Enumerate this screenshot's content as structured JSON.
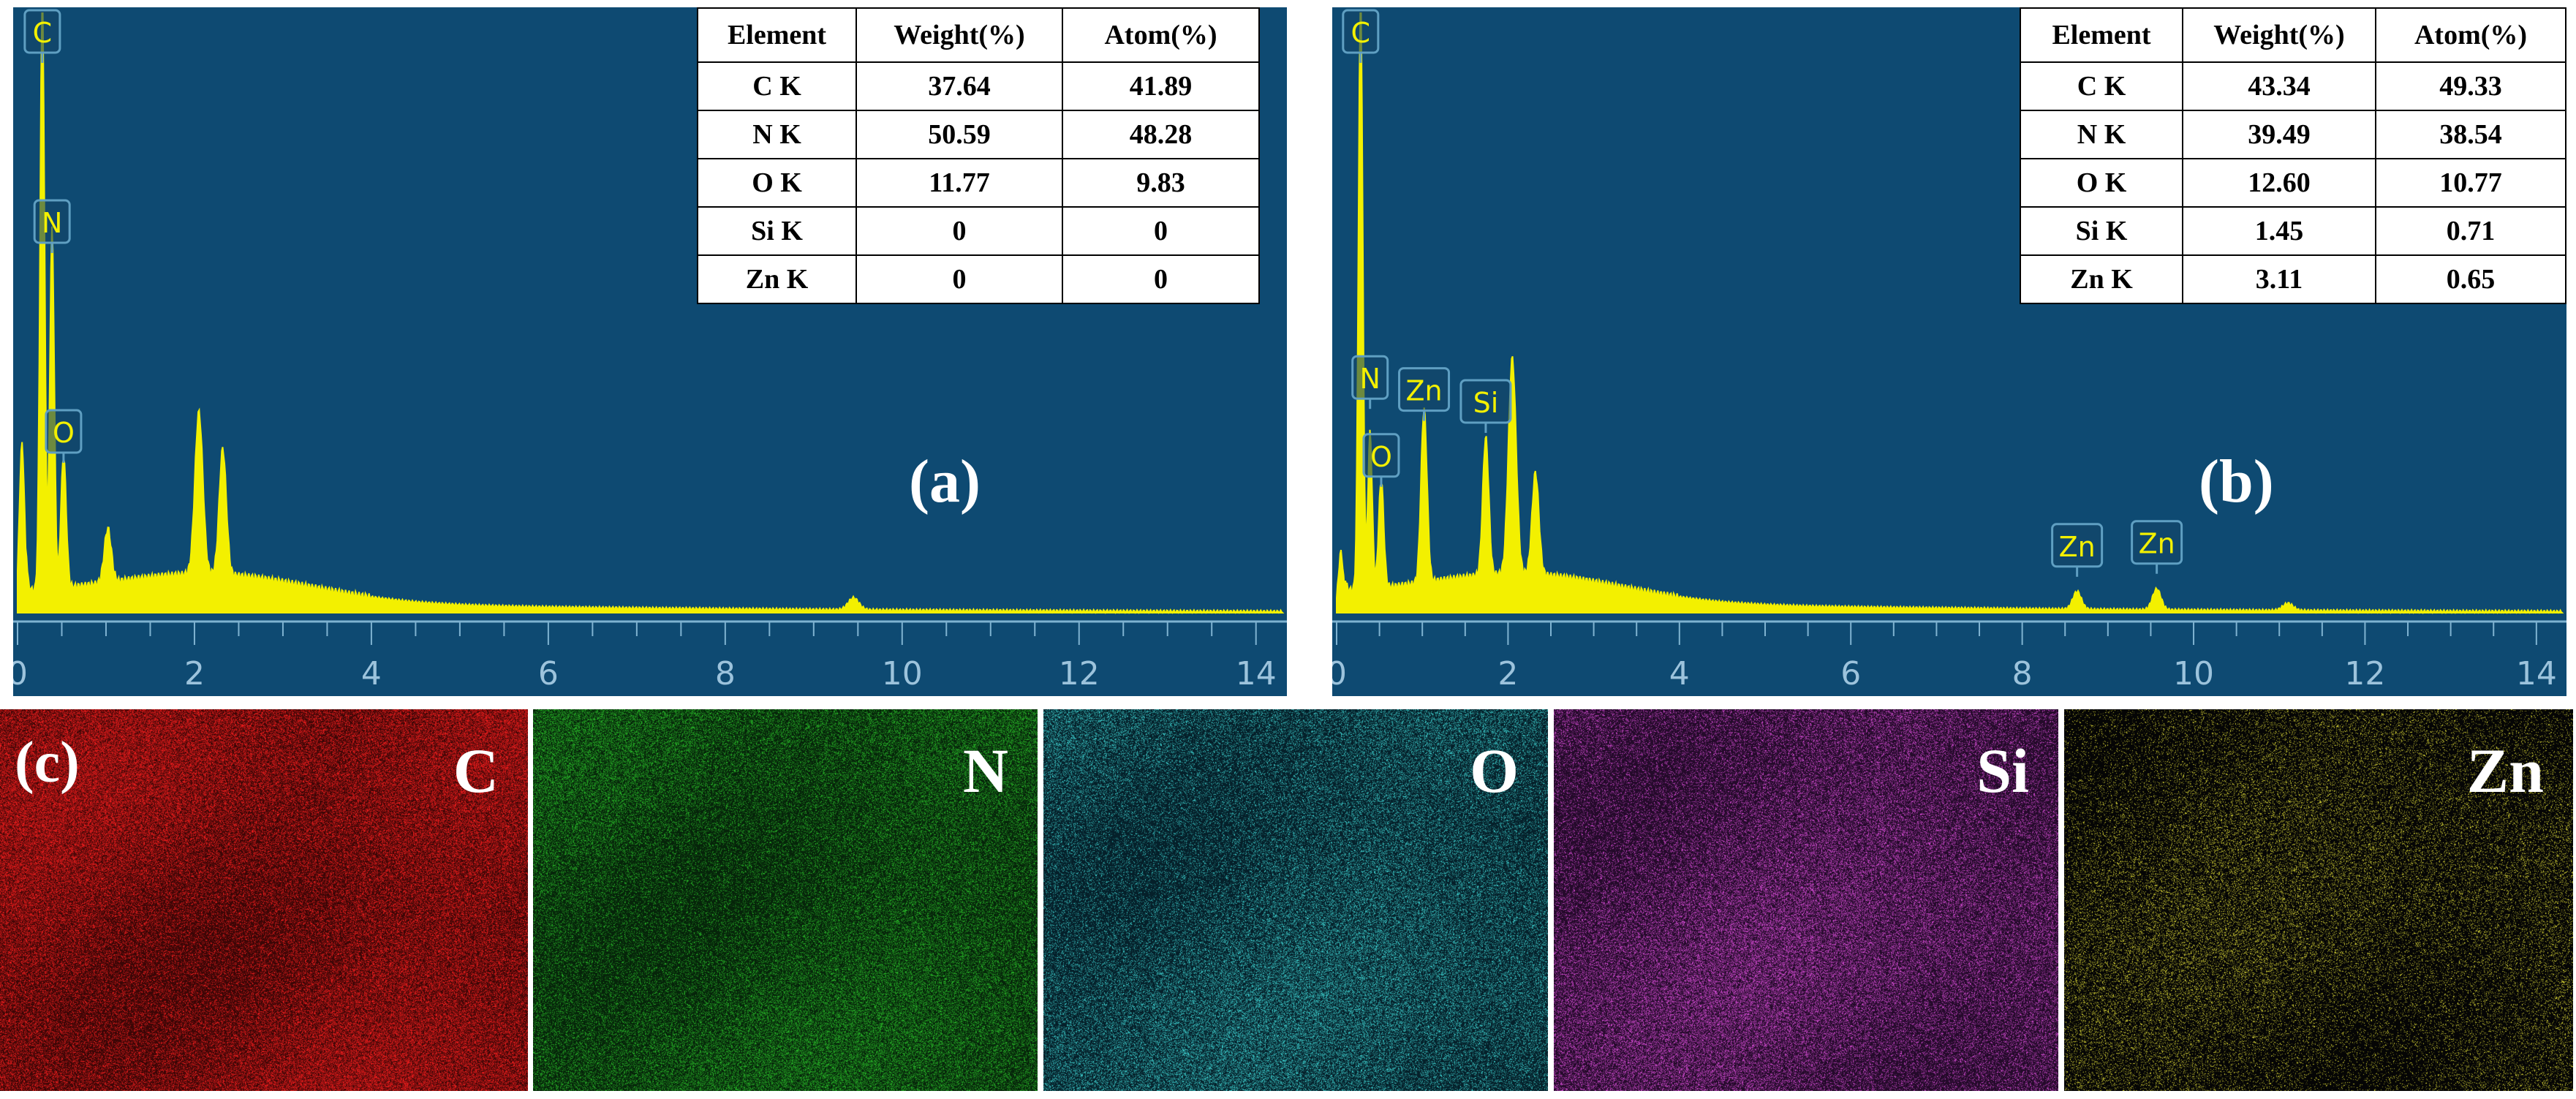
{
  "chart_data": [
    {
      "type": "line",
      "panel_label": "(a)",
      "x_ticks": [
        "0",
        "2",
        "4",
        "6",
        "8",
        "10",
        "12",
        "14"
      ],
      "xlim": [
        0,
        14.3
      ],
      "ylim": [
        0,
        1
      ],
      "peaks": [
        {
          "x": 0.05,
          "y": 0.28,
          "w": 0.03
        },
        {
          "x": 0.28,
          "y": 1.0,
          "w": 0.025
        },
        {
          "x": 0.39,
          "y": 0.6,
          "w": 0.025
        },
        {
          "x": 0.52,
          "y": 0.22,
          "w": 0.03
        },
        {
          "x": 1.02,
          "y": 0.09,
          "w": 0.04
        },
        {
          "x": 2.05,
          "y": 0.27,
          "w": 0.045
        },
        {
          "x": 2.32,
          "y": 0.21,
          "w": 0.04
        },
        {
          "x": 9.45,
          "y": 0.02,
          "w": 0.06
        }
      ],
      "peak_labels": [
        {
          "text": "C",
          "x": 0.28,
          "y": 1.0
        },
        {
          "text": "N",
          "x": 0.39,
          "y": 0.6
        },
        {
          "text": "O",
          "x": 0.52,
          "y": 0.25
        }
      ],
      "table": {
        "headers": [
          "Element",
          "Weight(%)",
          "Atom(%)"
        ],
        "rows": [
          [
            "C K",
            "37.64",
            "41.89"
          ],
          [
            "N K",
            "50.59",
            "48.28"
          ],
          [
            "O K",
            "11.77",
            "9.83"
          ],
          [
            "Si K",
            "0",
            "0"
          ],
          [
            "Zn K",
            "0",
            "0"
          ]
        ]
      }
    },
    {
      "type": "line",
      "panel_label": "(b)",
      "x_ticks": [
        "0",
        "2",
        "4",
        "6",
        "8",
        "10",
        "12",
        "14"
      ],
      "xlim": [
        0,
        14.3
      ],
      "ylim": [
        0,
        1
      ],
      "peaks": [
        {
          "x": 0.05,
          "y": 0.1,
          "w": 0.03
        },
        {
          "x": 0.28,
          "y": 1.0,
          "w": 0.025
        },
        {
          "x": 0.39,
          "y": 0.26,
          "w": 0.025
        },
        {
          "x": 0.52,
          "y": 0.18,
          "w": 0.03
        },
        {
          "x": 1.02,
          "y": 0.29,
          "w": 0.035
        },
        {
          "x": 1.74,
          "y": 0.23,
          "w": 0.035
        },
        {
          "x": 2.05,
          "y": 0.36,
          "w": 0.045
        },
        {
          "x": 2.32,
          "y": 0.17,
          "w": 0.04
        },
        {
          "x": 8.64,
          "y": 0.03,
          "w": 0.05
        },
        {
          "x": 9.57,
          "y": 0.035,
          "w": 0.05
        },
        {
          "x": 11.1,
          "y": 0.012,
          "w": 0.06
        }
      ],
      "peak_labels": [
        {
          "text": "N",
          "x": 0.39,
          "y": 0.34
        },
        {
          "text": "O",
          "x": 0.52,
          "y": 0.21
        },
        {
          "text": "Zn",
          "x": 1.02,
          "y": 0.32
        },
        {
          "text": "Si",
          "x": 1.74,
          "y": 0.3
        },
        {
          "text": "Zn",
          "x": 8.64,
          "y": 0.06
        },
        {
          "text": "Zn",
          "x": 9.57,
          "y": 0.065
        }
      ],
      "top_labels": [
        {
          "text": "C",
          "x": 0.28
        }
      ],
      "table": {
        "headers": [
          "Element",
          "Weight(%)",
          "Atom(%)"
        ],
        "rows": [
          [
            "C K",
            "43.34",
            "49.33"
          ],
          [
            "N K",
            "39.49",
            "38.54"
          ],
          [
            "O K",
            "12.60",
            "10.77"
          ],
          [
            "Si K",
            "1.45",
            "0.71"
          ],
          [
            "Zn K",
            "3.11",
            "0.65"
          ]
        ]
      }
    }
  ],
  "maps": {
    "panel_label": "(c)",
    "items": [
      {
        "element": "C",
        "color": "#ff1f1f",
        "bg": "#3a0606",
        "density": 0.55
      },
      {
        "element": "N",
        "color": "#2ac12a",
        "bg": "#06240a",
        "density": 0.4
      },
      {
        "element": "O",
        "color": "#3fd8d8",
        "bg": "#05202a",
        "density": 0.35
      },
      {
        "element": "Si",
        "color": "#e04fe0",
        "bg": "#240a2a",
        "density": 0.38
      },
      {
        "element": "Zn",
        "color": "#e8e43a",
        "bg": "#050505",
        "density": 0.22
      }
    ]
  },
  "colors": {
    "spectrum_bg": "#0e4a72",
    "spectrum_line": "#f3f000",
    "label_box": "#5f9fc2"
  }
}
